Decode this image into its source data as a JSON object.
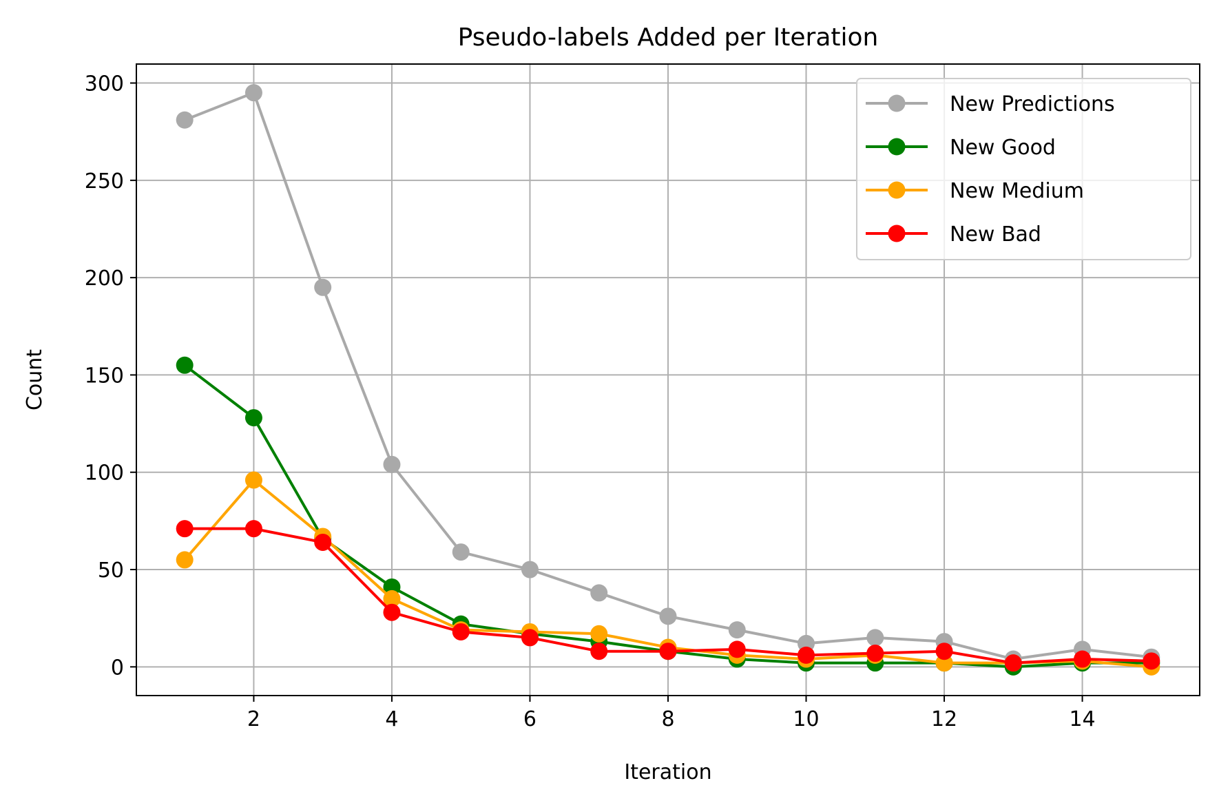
{
  "chart_data": {
    "type": "line",
    "title": "Pseudo-labels Added per Iteration",
    "xlabel": "Iteration",
    "ylabel": "Count",
    "x": [
      1,
      2,
      3,
      4,
      5,
      6,
      7,
      8,
      9,
      10,
      11,
      12,
      13,
      14,
      15
    ],
    "xlim": [
      0.3,
      15.7
    ],
    "ylim": [
      -14.75,
      309.75
    ],
    "xticks": [
      2,
      4,
      6,
      8,
      10,
      12,
      14
    ],
    "yticks": [
      0,
      50,
      100,
      150,
      200,
      250,
      300
    ],
    "grid": true,
    "legend_position": "top-right",
    "series": [
      {
        "name": "New Predictions",
        "color": "#a9a9a9",
        "values": [
          281,
          295,
          195,
          104,
          59,
          50,
          38,
          26,
          19,
          12,
          15,
          13,
          4,
          9,
          5
        ]
      },
      {
        "name": "New Good",
        "color": "#008000",
        "values": [
          155,
          128,
          66,
          41,
          22,
          17,
          13,
          8,
          4,
          2,
          2,
          2,
          0,
          2,
          2
        ]
      },
      {
        "name": "New Medium",
        "color": "#ffa500",
        "values": [
          55,
          96,
          67,
          35,
          19,
          18,
          17,
          10,
          6,
          4,
          6,
          2,
          2,
          3,
          0
        ]
      },
      {
        "name": "New Bad",
        "color": "#ff0000",
        "values": [
          71,
          71,
          64,
          28,
          18,
          15,
          8,
          8,
          9,
          6,
          7,
          8,
          2,
          4,
          3
        ]
      }
    ]
  }
}
